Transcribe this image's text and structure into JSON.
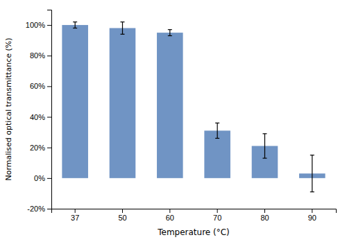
{
  "chart_data": {
    "type": "bar",
    "categories": [
      "37",
      "50",
      "60",
      "70",
      "80",
      "90"
    ],
    "values": [
      100,
      98,
      95,
      31,
      21,
      3
    ],
    "errors": [
      2,
      4,
      2,
      5,
      8,
      12
    ],
    "color": "#7094C4",
    "xlabel": "Temperature (°C)",
    "ylabel": "Normalised optical transmittance (%)",
    "ylim": [
      -20,
      110
    ],
    "yticks": [
      {
        "value": -20,
        "label": "-20%"
      },
      {
        "value": 0,
        "label": "0%"
      },
      {
        "value": 20,
        "label": "20%"
      },
      {
        "value": 40,
        "label": "40%"
      },
      {
        "value": 60,
        "label": "60%"
      },
      {
        "value": 80,
        "label": "80%"
      },
      {
        "value": 100,
        "label": "100%"
      }
    ],
    "grid": false
  }
}
